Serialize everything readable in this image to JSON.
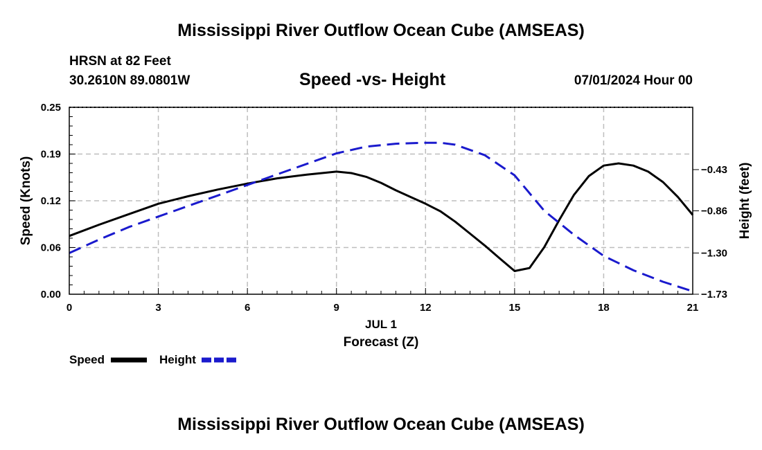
{
  "header": {
    "title": "Mississippi River Outflow Ocean Cube (AMSEAS)",
    "station": "HRSN at 82 Feet",
    "coords": "30.2610N  89.0801W",
    "chart_title": "Speed -vs- Height",
    "datetime": "07/01/2024 Hour 00",
    "bottom_title": "Mississippi River Outflow Ocean Cube (AMSEAS)"
  },
  "chart_data": {
    "type": "line",
    "title": "Speed -vs- Height",
    "xlabel": "Forecast (Z)",
    "xsublabel": "JUL 1",
    "ylabel": "Speed (Knots)",
    "y2label": "Height (feet)",
    "xlim": [
      0,
      21
    ],
    "ylim": [
      0,
      0.25
    ],
    "y2lim": [
      -1.73,
      0.22
    ],
    "x_ticks": [
      0,
      3,
      6,
      9,
      12,
      15,
      18,
      21
    ],
    "x_tick_labels": [
      "0",
      "3",
      "6",
      "9",
      "12",
      "15",
      "18",
      "21"
    ],
    "y_ticks": [
      0,
      0.0625,
      0.125,
      0.1875,
      0.25
    ],
    "y_tick_labels": [
      "0.00",
      "0.06",
      "0.12",
      "0.19",
      "0.25"
    ],
    "y2_ticks": [
      -1.73,
      -1.3,
      -0.86,
      -0.43
    ],
    "y2_tick_labels": [
      "−1.73",
      "−1.30",
      "−0.86",
      "−0.43"
    ],
    "grid": true,
    "legend_position": "bottom-left",
    "series": [
      {
        "name": "Speed",
        "axis": "left",
        "color": "#000000",
        "dash": "solid",
        "x": [
          0,
          1,
          2,
          3,
          4,
          5,
          6,
          7,
          8,
          9,
          9.5,
          10,
          10.5,
          11,
          11.5,
          12,
          12.5,
          13,
          13.5,
          14,
          14.5,
          15,
          15.5,
          16,
          16.5,
          17,
          17.5,
          18,
          18.5,
          19,
          19.5,
          20,
          20.5,
          21
        ],
        "values": [
          0.078,
          0.093,
          0.107,
          0.121,
          0.131,
          0.14,
          0.148,
          0.155,
          0.16,
          0.164,
          0.162,
          0.157,
          0.149,
          0.139,
          0.13,
          0.121,
          0.111,
          0.097,
          0.081,
          0.065,
          0.048,
          0.031,
          0.035,
          0.063,
          0.099,
          0.133,
          0.158,
          0.172,
          0.175,
          0.172,
          0.164,
          0.15,
          0.13,
          0.106
        ]
      },
      {
        "name": "Height",
        "axis": "right",
        "color": "#1a1acd",
        "dash": "dashed",
        "x": [
          0,
          1,
          2,
          3,
          4,
          5,
          6,
          7,
          8,
          9,
          10,
          11,
          12,
          12.5,
          13,
          14,
          15,
          16,
          17,
          18,
          19,
          20,
          21
        ],
        "values": [
          -1.3,
          -1.16,
          -1.03,
          -0.92,
          -0.81,
          -0.7,
          -0.59,
          -0.48,
          -0.37,
          -0.26,
          -0.19,
          -0.16,
          -0.15,
          -0.15,
          -0.17,
          -0.28,
          -0.49,
          -0.86,
          -1.11,
          -1.33,
          -1.48,
          -1.6,
          -1.7
        ]
      }
    ]
  }
}
